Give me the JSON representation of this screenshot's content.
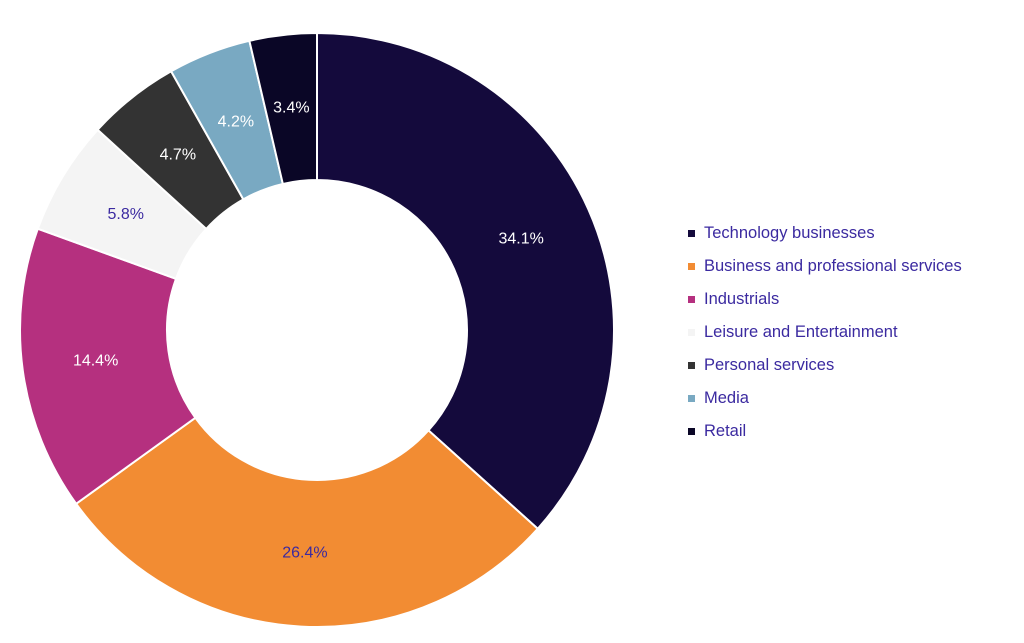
{
  "chart_data": {
    "type": "pie",
    "variant": "donut",
    "title": "",
    "legend_position": "right",
    "categories": [
      "Technology businesses",
      "Business and professional services",
      "Industrials",
      "Leisure and Entertainment",
      "Personal services",
      "Media",
      "Retail"
    ],
    "values": [
      34.1,
      26.4,
      14.4,
      5.8,
      4.7,
      4.2,
      3.4
    ],
    "data_labels": [
      "34.1%",
      "26.4%",
      "14.4%",
      "5.8%",
      "4.7%",
      "4.2%",
      "3.4%"
    ],
    "colors": [
      "#140a3c",
      "#f28c33",
      "#b5307f",
      "#f4f4f4",
      "#333333",
      "#79a9c2",
      "#0a0626"
    ],
    "label_colors": [
      "#ffffff",
      "#3b2aa0",
      "#ffffff",
      "#3b2aa0",
      "#ffffff",
      "#ffffff",
      "#ffffff"
    ],
    "legend_text_color": "#3b2aa0"
  }
}
